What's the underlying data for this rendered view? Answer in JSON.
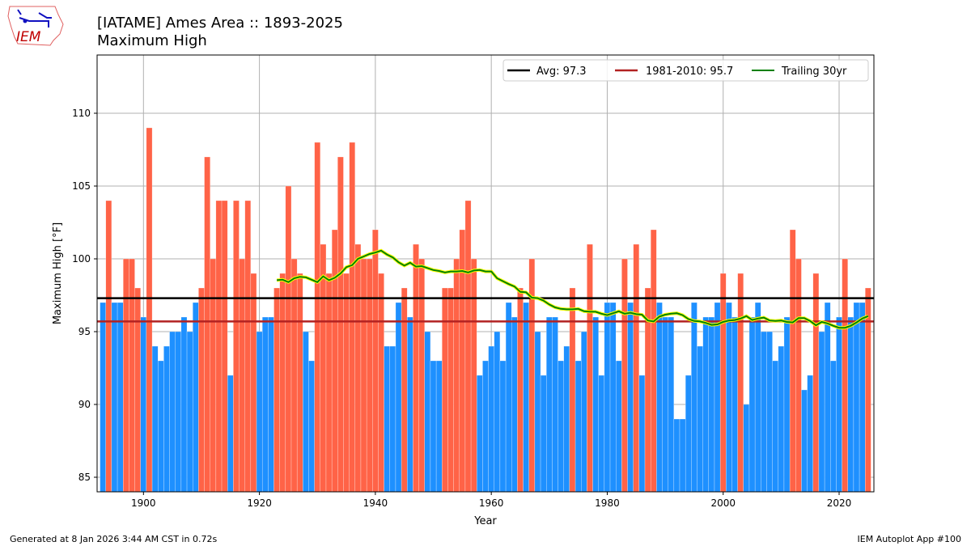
{
  "logo": {
    "text": "IEM"
  },
  "header": {
    "title_line1": "[IATAME] Ames Area :: 1893-2025",
    "title_line2": "Maximum High"
  },
  "footer": {
    "left": "Generated at 8 Jan 2026 3:44 AM CST in 0.72s",
    "right": "IEM Autoplot App #100"
  },
  "chart_data": {
    "type": "bar",
    "xlabel": "Year",
    "ylabel": "Maximum High [°F]",
    "xlim": [
      1892,
      2026
    ],
    "ylim": [
      84,
      114
    ],
    "grid": true,
    "legend_position": "top-right",
    "xticks": [
      "1900",
      "1920",
      "1940",
      "1960",
      "1980",
      "2000",
      "2020"
    ],
    "yticks": [
      "85",
      "90",
      "95",
      "100",
      "105",
      "110"
    ],
    "colors": {
      "above": "#FF6347",
      "below": "#1E90FF",
      "avg": "#000000",
      "climo": "#B22222",
      "trailing": "#008000",
      "trailing_halo": "#FFFF00"
    },
    "years_start": 1893,
    "values": [
      97,
      104,
      97,
      97,
      100,
      100,
      98,
      96,
      109,
      94,
      93,
      94,
      95,
      95,
      96,
      95,
      97,
      98,
      107,
      100,
      104,
      104,
      92,
      104,
      100,
      104,
      99,
      95,
      96,
      96,
      98,
      99,
      105,
      100,
      99,
      95,
      93,
      108,
      101,
      99,
      102,
      107,
      99,
      108,
      101,
      100,
      100,
      102,
      99,
      94,
      94,
      97,
      98,
      96,
      101,
      100,
      95,
      93,
      93,
      98,
      98,
      100,
      102,
      104,
      100,
      92,
      93,
      94,
      95,
      93,
      97,
      96,
      98,
      97,
      100,
      95,
      92,
      96,
      96,
      93,
      94,
      98,
      93,
      95,
      101,
      96,
      92,
      97,
      97,
      93,
      100,
      97,
      101,
      92,
      98,
      102,
      97,
      96,
      96,
      89,
      89,
      92,
      97,
      94,
      96,
      96,
      97,
      99,
      97,
      96,
      99,
      90,
      96,
      97,
      95,
      95,
      93,
      94,
      96,
      102,
      100,
      91,
      92,
      99,
      95,
      97,
      93,
      96,
      100,
      96,
      97,
      97,
      98
    ],
    "reference_lines": [
      {
        "name": "Avg: 97.3",
        "value": 97.3
      },
      {
        "name": "1981-2010: 95.7",
        "value": 95.7
      }
    ],
    "trailing": {
      "name": "Trailing 30yr",
      "window": 30
    }
  }
}
